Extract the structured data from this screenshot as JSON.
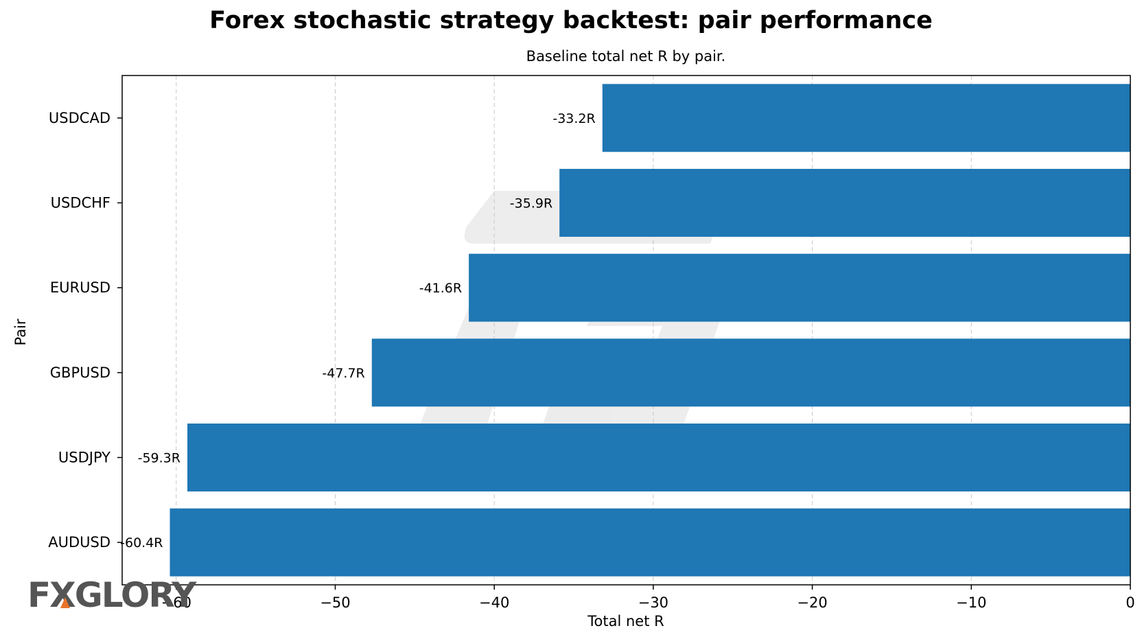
{
  "chart_data": {
    "type": "bar",
    "orientation": "horizontal",
    "title": "Forex stochastic strategy backtest: pair performance",
    "subtitle": "Baseline total net R by pair.",
    "xlabel": "Total net R",
    "ylabel": "Pair",
    "categories": [
      "USDCAD",
      "USDCHF",
      "EURUSD",
      "GBPUSD",
      "USDJPY",
      "AUDUSD"
    ],
    "values": [
      -33.2,
      -35.9,
      -41.6,
      -47.7,
      -59.3,
      -60.4
    ],
    "data_labels": [
      "-33.2R",
      "-35.9R",
      "-41.6R",
      "-47.7R",
      "-59.3R",
      "-60.4R"
    ],
    "xlim": [
      -63.4,
      0
    ],
    "xticks": [
      -60,
      -50,
      -40,
      -30,
      -20,
      -10,
      0
    ],
    "xtick_labels": [
      "−60",
      "−50",
      "−40",
      "−30",
      "−20",
      "−10",
      "0"
    ],
    "grid": "x-dashed",
    "bar_color": "#1f77b4"
  },
  "branding": {
    "logo_text": "FXGLORY",
    "logo_color": "#555555",
    "logo_accent_color": "#e8732a"
  }
}
